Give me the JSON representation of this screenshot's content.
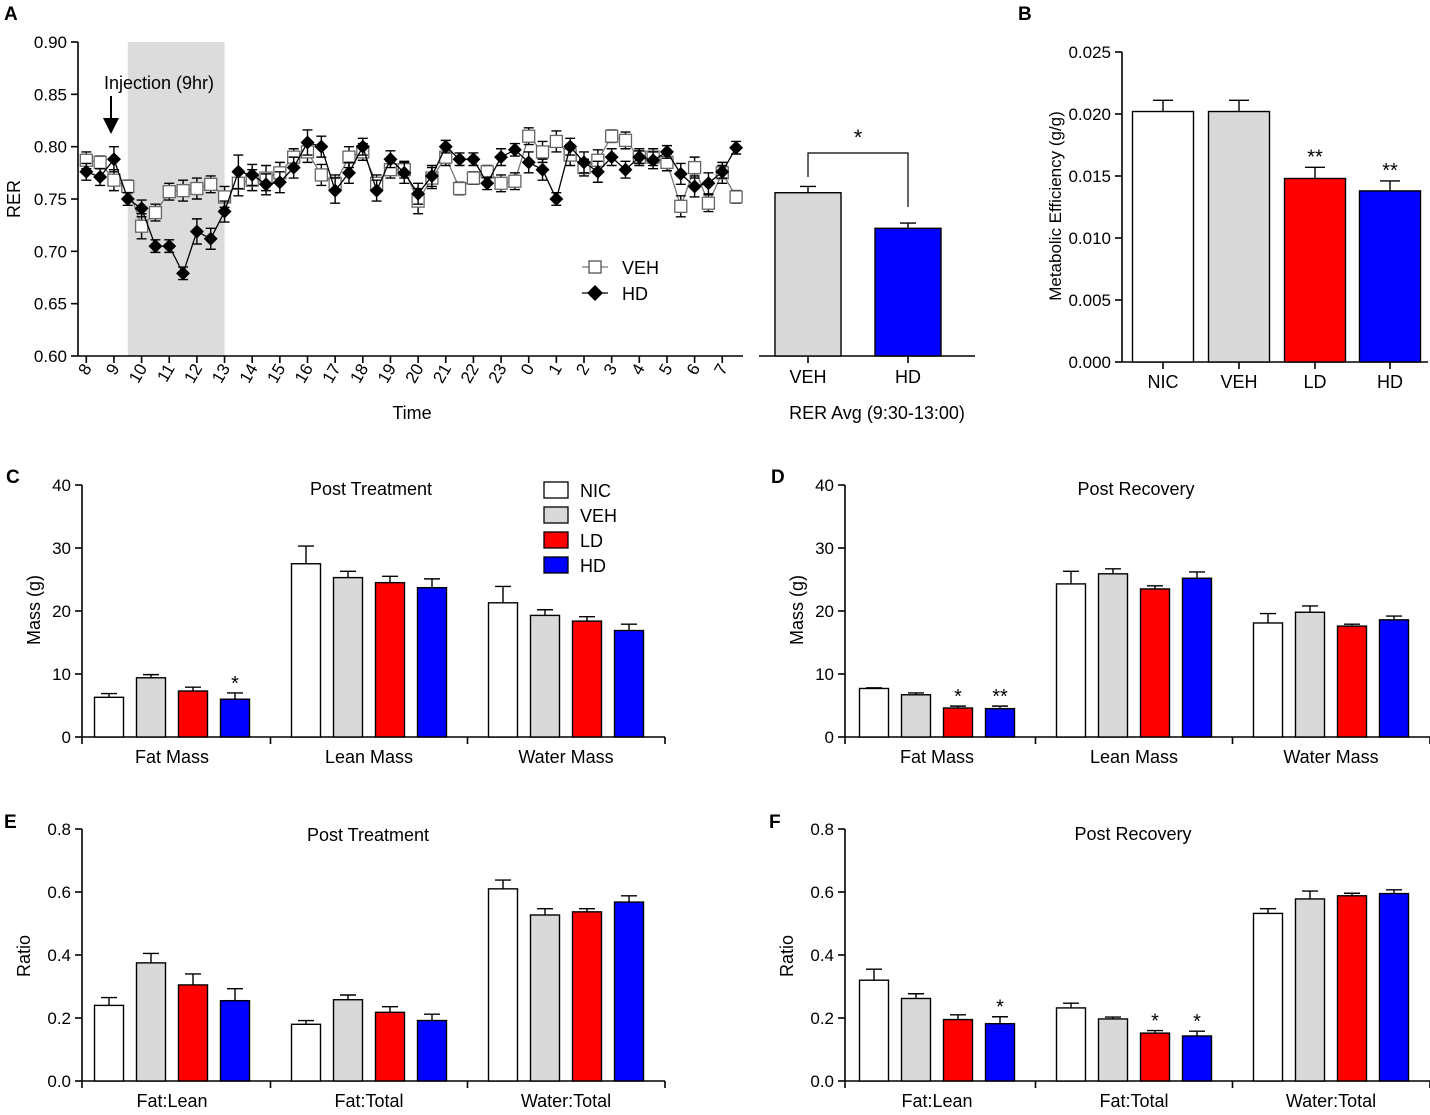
{
  "colors": {
    "NIC": "#ffffff",
    "VEH": "#d9d9d9",
    "LD": "#ff0000",
    "HD": "#0000ff",
    "shade": "#dcdcdc"
  },
  "chart_data": [
    {
      "id": "A-line",
      "panel": "A",
      "type": "line",
      "xlabel": "Time",
      "ylabel": "RER",
      "ylim": [
        0.6,
        0.9
      ],
      "yticks": [
        "0.60",
        "0.65",
        "0.70",
        "0.75",
        "0.80",
        "0.85",
        "0.90"
      ],
      "ytick_values": [
        0.6,
        0.65,
        0.7,
        0.75,
        0.8,
        0.85,
        0.9
      ],
      "xticks": [
        "8",
        "9",
        "10",
        "11",
        "12",
        "13",
        "14",
        "15",
        "16",
        "17",
        "18",
        "19",
        "20",
        "21",
        "22",
        "23",
        "0",
        "1",
        "2",
        "3",
        "4",
        "5",
        "6",
        "7"
      ],
      "x_start": 8,
      "x_end": 31.5,
      "shaded_region": [
        9.5,
        13.0
      ],
      "annotation": "Injection (9hr)",
      "annotation_x": 9,
      "legend": [
        "VEH",
        "HD"
      ],
      "series": [
        {
          "name": "VEH",
          "marker": "open-square",
          "x": [
            8,
            8.5,
            9,
            9.5,
            10,
            10.5,
            11,
            11.5,
            12,
            12.5,
            13,
            13.5,
            14,
            14.5,
            15,
            15.5,
            16,
            16.5,
            17,
            17.5,
            18,
            18.5,
            19,
            19.5,
            20,
            20.5,
            21,
            21.5,
            22,
            22.5,
            23,
            23.5,
            24,
            24.5,
            25,
            25.5,
            26,
            26.5,
            27,
            27.5,
            28,
            28.5,
            29,
            29.5,
            30,
            30.5,
            31,
            31.5
          ],
          "values": [
            0.787,
            0.785,
            0.768,
            0.762,
            0.724,
            0.737,
            0.757,
            0.758,
            0.76,
            0.764,
            0.752,
            0.765,
            0.768,
            0.77,
            0.775,
            0.79,
            0.795,
            0.773,
            0.765,
            0.79,
            0.795,
            0.765,
            0.778,
            0.778,
            0.748,
            0.77,
            0.79,
            0.76,
            0.77,
            0.776,
            0.765,
            0.767,
            0.81,
            0.795,
            0.805,
            0.792,
            0.78,
            0.787,
            0.81,
            0.806,
            0.79,
            0.79,
            0.785,
            0.743,
            0.78,
            0.746,
            0.775,
            0.752
          ],
          "errors": [
            0.008,
            0.006,
            0.01,
            0.006,
            0.012,
            0.008,
            0.008,
            0.01,
            0.01,
            0.008,
            0.01,
            0.012,
            0.01,
            0.012,
            0.01,
            0.008,
            0.01,
            0.01,
            0.008,
            0.01,
            0.008,
            0.008,
            0.008,
            0.008,
            0.012,
            0.01,
            0.008,
            0.006,
            0.006,
            0.006,
            0.008,
            0.008,
            0.008,
            0.01,
            0.01,
            0.01,
            0.008,
            0.01,
            0.006,
            0.008,
            0.008,
            0.008,
            0.008,
            0.01,
            0.01,
            0.008,
            0.01,
            0.006
          ]
        },
        {
          "name": "HD",
          "marker": "filled-diamond",
          "x": [
            8,
            8.5,
            9,
            9.5,
            10,
            10.5,
            11,
            11.5,
            12,
            12.5,
            13,
            13.5,
            14,
            14.5,
            15,
            15.5,
            16,
            16.5,
            17,
            17.5,
            18,
            18.5,
            19,
            19.5,
            20,
            20.5,
            21,
            21.5,
            22,
            22.5,
            23,
            23.5,
            24,
            24.5,
            25,
            25.5,
            26,
            26.5,
            27,
            27.5,
            28,
            28.5,
            29,
            29.5,
            30,
            30.5,
            31,
            31.5
          ],
          "values": [
            0.776,
            0.771,
            0.788,
            0.75,
            0.741,
            0.705,
            0.705,
            0.679,
            0.719,
            0.712,
            0.738,
            0.776,
            0.773,
            0.764,
            0.766,
            0.78,
            0.804,
            0.8,
            0.758,
            0.775,
            0.8,
            0.758,
            0.788,
            0.775,
            0.755,
            0.772,
            0.8,
            0.788,
            0.788,
            0.765,
            0.79,
            0.797,
            0.785,
            0.778,
            0.75,
            0.8,
            0.785,
            0.776,
            0.79,
            0.778,
            0.79,
            0.787,
            0.795,
            0.774,
            0.762,
            0.765,
            0.776,
            0.799
          ],
          "errors": [
            0.008,
            0.008,
            0.012,
            0.006,
            0.008,
            0.006,
            0.006,
            0.006,
            0.012,
            0.01,
            0.01,
            0.016,
            0.01,
            0.01,
            0.01,
            0.01,
            0.012,
            0.01,
            0.012,
            0.01,
            0.008,
            0.01,
            0.008,
            0.01,
            0.01,
            0.01,
            0.006,
            0.006,
            0.006,
            0.006,
            0.008,
            0.006,
            0.01,
            0.01,
            0.006,
            0.008,
            0.01,
            0.01,
            0.008,
            0.008,
            0.006,
            0.008,
            0.006,
            0.01,
            0.01,
            0.01,
            0.006,
            0.006
          ]
        }
      ]
    },
    {
      "id": "A-bar",
      "panel": "A",
      "type": "bar",
      "categories": [
        "VEH",
        "HD"
      ],
      "values": [
        0.756,
        0.722
      ],
      "errors": [
        0.006,
        0.005
      ],
      "xlabel": "RER Avg (9:30-13:00)",
      "ylim": [
        0.6,
        0.9
      ],
      "significance": {
        "label": "*",
        "between": [
          "VEH",
          "HD"
        ]
      }
    },
    {
      "id": "B",
      "panel": "B",
      "type": "bar",
      "categories": [
        "NIC",
        "VEH",
        "LD",
        "HD"
      ],
      "values": [
        0.0202,
        0.0202,
        0.0148,
        0.0138
      ],
      "errors": [
        0.0009,
        0.0009,
        0.0009,
        0.0008
      ],
      "stars": [
        "",
        "",
        "**",
        "**"
      ],
      "ylabel": "Metabolic Efficiency (g/g)",
      "ylim": [
        0,
        0.025
      ],
      "yticks": [
        "0.000",
        "0.005",
        "0.010",
        "0.015",
        "0.020",
        "0.025"
      ],
      "ytick_values": [
        0,
        0.005,
        0.01,
        0.015,
        0.02,
        0.025
      ]
    },
    {
      "id": "C",
      "panel": "C",
      "type": "bar",
      "title": "Post Treatment",
      "ylabel": "Mass (g)",
      "ylim": [
        0,
        40
      ],
      "yticks": [
        "0",
        "10",
        "20",
        "30",
        "40"
      ],
      "ytick_values": [
        0,
        10,
        20,
        30,
        40
      ],
      "categories": [
        "Fat Mass",
        "Lean Mass",
        "Water Mass"
      ],
      "legend": [
        "NIC",
        "VEH",
        "LD",
        "HD"
      ],
      "series": [
        {
          "name": "NIC",
          "values": [
            6.3,
            27.5,
            21.3
          ],
          "errors": [
            0.6,
            2.8,
            2.6
          ]
        },
        {
          "name": "VEH",
          "values": [
            9.4,
            25.3,
            19.3
          ],
          "errors": [
            0.5,
            1.0,
            0.9
          ]
        },
        {
          "name": "LD",
          "values": [
            7.3,
            24.5,
            18.4
          ],
          "errors": [
            0.6,
            1.0,
            0.7
          ]
        },
        {
          "name": "HD",
          "values": [
            6.0,
            23.7,
            16.9
          ],
          "errors": [
            1.0,
            1.4,
            1.0
          ]
        }
      ],
      "stars": [
        [
          "",
          "",
          "",
          "*"
        ],
        [
          "",
          "",
          "",
          ""
        ],
        [
          "",
          "",
          "",
          ""
        ]
      ]
    },
    {
      "id": "D",
      "panel": "D",
      "type": "bar",
      "title": "Post Recovery",
      "ylabel": "Mass (g)",
      "ylim": [
        0,
        40
      ],
      "yticks": [
        "0",
        "10",
        "20",
        "30",
        "40"
      ],
      "ytick_values": [
        0,
        10,
        20,
        30,
        40
      ],
      "categories": [
        "Fat Mass",
        "Lean Mass",
        "Water Mass"
      ],
      "series": [
        {
          "name": "NIC",
          "values": [
            7.7,
            24.3,
            18.1
          ],
          "errors": [
            0.1,
            2.0,
            1.5
          ]
        },
        {
          "name": "VEH",
          "values": [
            6.7,
            25.9,
            19.8
          ],
          "errors": [
            0.3,
            0.8,
            1.0
          ]
        },
        {
          "name": "LD",
          "values": [
            4.6,
            23.5,
            17.6
          ],
          "errors": [
            0.3,
            0.5,
            0.3
          ]
        },
        {
          "name": "HD",
          "values": [
            4.5,
            25.2,
            18.6
          ],
          "errors": [
            0.4,
            1.0,
            0.6
          ]
        }
      ],
      "stars": [
        [
          "",
          "",
          "*",
          "**"
        ],
        [
          "",
          "",
          "",
          ""
        ],
        [
          "",
          "",
          "",
          ""
        ]
      ]
    },
    {
      "id": "E",
      "panel": "E",
      "type": "bar",
      "title": "Post Treatment",
      "ylabel": "Ratio",
      "ylim": [
        0,
        0.8
      ],
      "yticks": [
        "0.0",
        "0.2",
        "0.4",
        "0.6",
        "0.8"
      ],
      "ytick_values": [
        0,
        0.2,
        0.4,
        0.6,
        0.8
      ],
      "categories": [
        "Fat:Lean",
        "Fat:Total",
        "Water:Total"
      ],
      "series": [
        {
          "name": "NIC",
          "values": [
            0.24,
            0.18,
            0.61
          ],
          "errors": [
            0.025,
            0.012,
            0.028
          ]
        },
        {
          "name": "VEH",
          "values": [
            0.375,
            0.258,
            0.527
          ],
          "errors": [
            0.03,
            0.015,
            0.02
          ]
        },
        {
          "name": "LD",
          "values": [
            0.305,
            0.218,
            0.537
          ],
          "errors": [
            0.035,
            0.018,
            0.01
          ]
        },
        {
          "name": "HD",
          "values": [
            0.255,
            0.192,
            0.568
          ],
          "errors": [
            0.038,
            0.02,
            0.02
          ]
        }
      ],
      "stars": [
        [
          "",
          "",
          "",
          ""
        ],
        [
          "",
          "",
          "",
          ""
        ],
        [
          "",
          "",
          "",
          ""
        ]
      ]
    },
    {
      "id": "F",
      "panel": "F",
      "type": "bar",
      "title": "Post Recovery",
      "ylabel": "Ratio",
      "ylim": [
        0,
        0.8
      ],
      "yticks": [
        "0.0",
        "0.2",
        "0.4",
        "0.6",
        "0.8"
      ],
      "ytick_values": [
        0,
        0.2,
        0.4,
        0.6,
        0.8
      ],
      "categories": [
        "Fat:Lean",
        "Fat:Total",
        "Water:Total"
      ],
      "series": [
        {
          "name": "NIC",
          "values": [
            0.32,
            0.232,
            0.532
          ],
          "errors": [
            0.035,
            0.015,
            0.015
          ]
        },
        {
          "name": "VEH",
          "values": [
            0.262,
            0.197,
            0.578
          ],
          "errors": [
            0.015,
            0.006,
            0.025
          ]
        },
        {
          "name": "LD",
          "values": [
            0.195,
            0.152,
            0.588
          ],
          "errors": [
            0.015,
            0.008,
            0.008
          ]
        },
        {
          "name": "HD",
          "values": [
            0.182,
            0.143,
            0.595
          ],
          "errors": [
            0.022,
            0.015,
            0.012
          ]
        }
      ],
      "stars": [
        [
          "",
          "",
          "",
          "*"
        ],
        [
          "",
          "",
          "*",
          "*"
        ],
        [
          "",
          "",
          "",
          ""
        ]
      ]
    }
  ]
}
